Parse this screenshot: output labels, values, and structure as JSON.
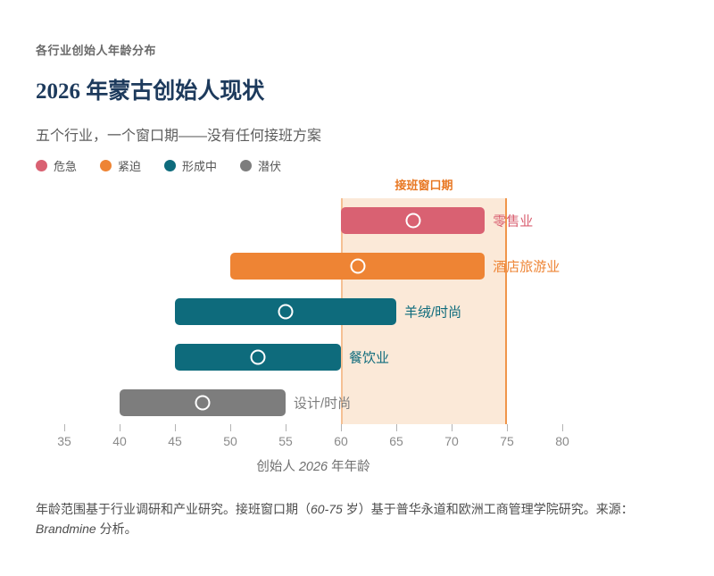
{
  "page": {
    "kicker": "各行业创始人年龄分布",
    "title": "2026 年蒙古创始人现状",
    "subtitle": "五个行业，一个窗口期——没有任何接班方案"
  },
  "colors": {
    "critical": "#d96172",
    "urgent": "#ee8434",
    "forming": "#0e6b7c",
    "latent": "#7d7d7d",
    "window_fill": "#fbe9d8",
    "window_border_left": "#f5c093",
    "window_border_right": "#f0954a",
    "window_label": "#e87722",
    "title_navy": "#1d3a5c",
    "tick": "#8a8a8a"
  },
  "legend": {
    "items": [
      {
        "label": "危急",
        "color_key": "critical"
      },
      {
        "label": "紧迫",
        "color_key": "urgent"
      },
      {
        "label": "形成中",
        "color_key": "forming"
      },
      {
        "label": "潜伏",
        "color_key": "latent"
      }
    ]
  },
  "chart_data": {
    "type": "range-bar",
    "title": "2026 年蒙古创始人现状",
    "subtitle": "五个行业，一个窗口期——没有任何接班方案",
    "xlim": [
      35,
      80
    ],
    "xticks": [
      35,
      40,
      45,
      50,
      55,
      60,
      65,
      70,
      75,
      80
    ],
    "grid": false,
    "legend_position": "top",
    "window": {
      "label": "接班窗口期",
      "start": 60,
      "end": 75
    },
    "series": [
      {
        "name": "零售业",
        "start": 60,
        "end": 73,
        "midpoint": 66.5,
        "status": "危急",
        "color_key": "critical"
      },
      {
        "name": "酒店旅游业",
        "start": 50,
        "end": 73,
        "midpoint": 61.5,
        "status": "紧迫",
        "color_key": "urgent"
      },
      {
        "name": "羊绒/时尚",
        "start": 45,
        "end": 65,
        "midpoint": 55,
        "status": "形成中",
        "color_key": "forming"
      },
      {
        "name": "餐饮业",
        "start": 45,
        "end": 60,
        "midpoint": 52.5,
        "status": "形成中",
        "color_key": "forming"
      },
      {
        "name": "设计/时尚",
        "start": 40,
        "end": 55,
        "midpoint": 47.5,
        "status": "潜伏",
        "color_key": "latent"
      }
    ],
    "xlabel_parts": [
      {
        "text": "创始人 ",
        "italic": false
      },
      {
        "text": "2026",
        "italic": true
      },
      {
        "text": " 年年龄",
        "italic": false
      }
    ]
  },
  "footnote": {
    "parts": [
      {
        "text": "年龄范围基于行业调研和产业研究。接班窗口期（",
        "italic": false
      },
      {
        "text": "60-75",
        "italic": true
      },
      {
        "text": " 岁）基于普华永道和欧洲工商管理学院研究。来源：",
        "italic": false
      },
      {
        "text": "Brandmine",
        "italic": true
      },
      {
        "text": " 分析。",
        "italic": false
      }
    ]
  }
}
